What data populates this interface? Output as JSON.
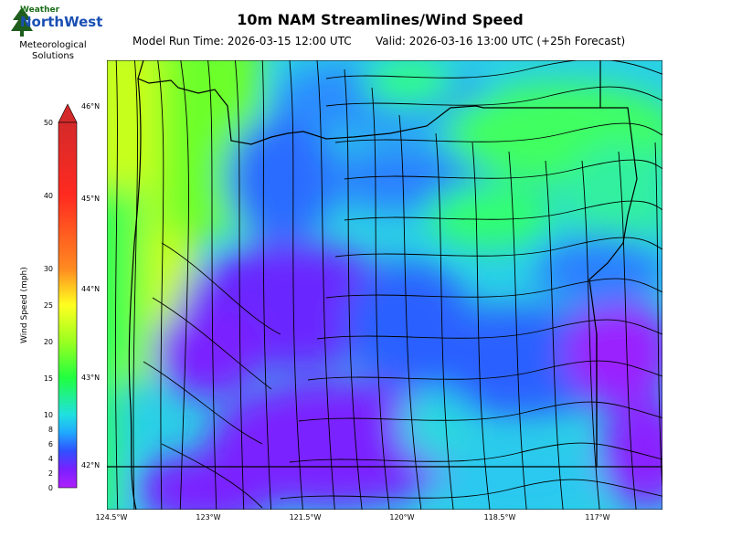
{
  "logo": {
    "top_text": "Weather",
    "brand_text": "NorthWest",
    "subtitle": [
      "Meteorological",
      "Solutions"
    ]
  },
  "map": {
    "title": "10m NAM Streamlines/Wind Speed",
    "model_run": "Model Run Time: 2026-03-15 12:00 UTC",
    "valid": "Valid: 2026-03-16 13:00 UTC  (+25h Forecast)",
    "colorbar": {
      "label": "Wind Speed (mph)",
      "ticks": [
        "50",
        "40",
        "30",
        "25",
        "20",
        "15",
        "10",
        "8",
        "6",
        "4",
        "2",
        "0"
      ],
      "colors": [
        "#d42a2a",
        "#ff2a20",
        "#ff8a20",
        "#ffff20",
        "#9bff20",
        "#20ff40",
        "#20e0e0",
        "#20a8ff",
        "#3050ff",
        "#7a20ff",
        "#b020ff"
      ]
    },
    "lat_labels": [
      "46°N",
      "45°N",
      "44°N",
      "43°N",
      "42°N"
    ],
    "lon_labels": [
      "124.5°W",
      "123°W",
      "121.5°W",
      "120°W",
      "118.5°W",
      "117°W"
    ]
  }
}
